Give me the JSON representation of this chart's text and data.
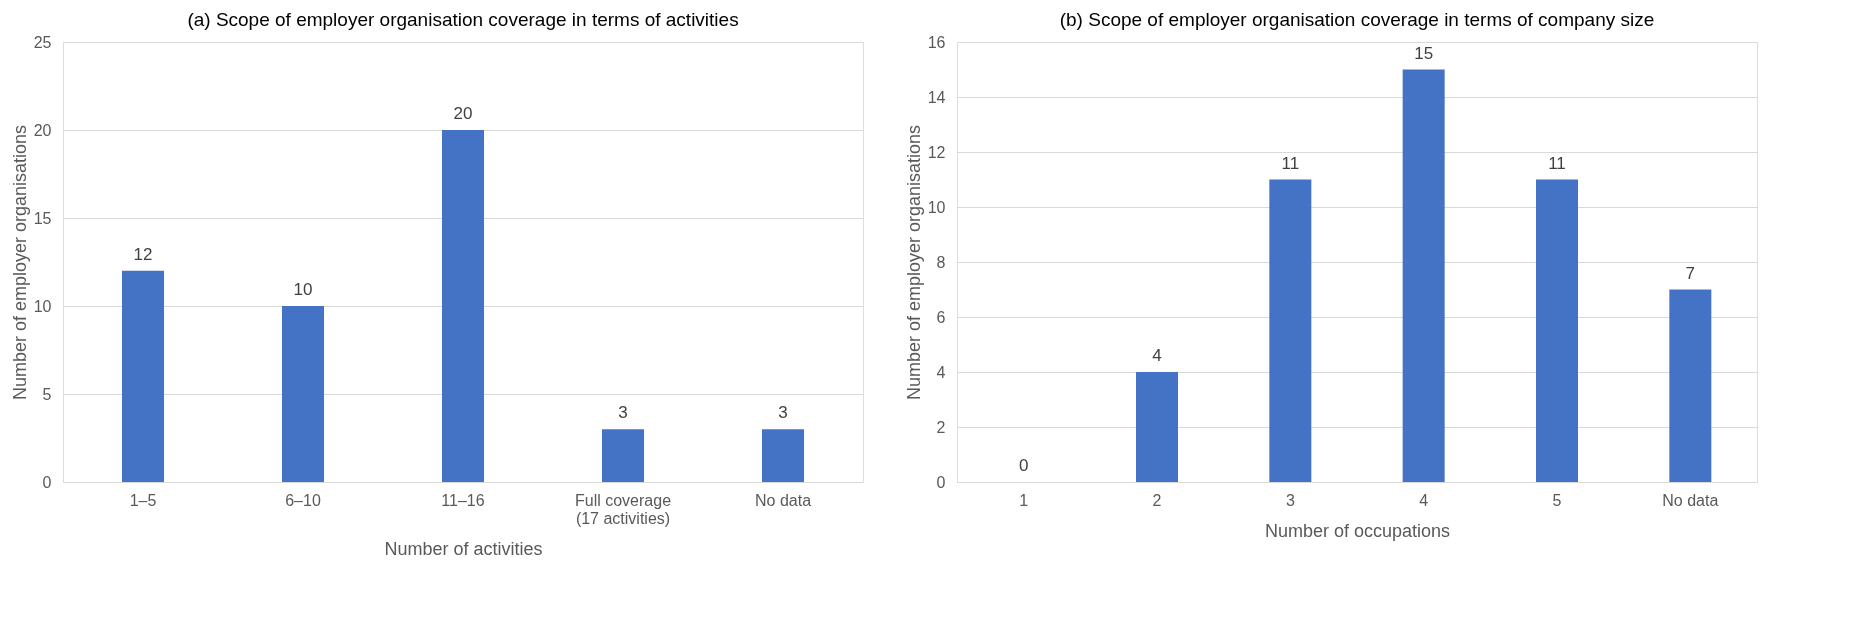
{
  "chart_data": [
    {
      "type": "bar",
      "title": "(a)  Scope of employer organisation coverage in terms of activities",
      "xlabel": "Number of activities",
      "ylabel": "Number of employer organisations",
      "categories": [
        "1–5",
        "6–10",
        "11–16",
        "Full coverage\n(17 activities)",
        "No data"
      ],
      "values": [
        12,
        10,
        20,
        3,
        3
      ],
      "color": "#4472c4",
      "ylim": [
        0,
        25
      ],
      "yticks": [
        0,
        5,
        10,
        15,
        20,
        25
      ],
      "grid": "y",
      "data_labels": true
    },
    {
      "type": "bar",
      "title": "(b)  Scope of employer organisation coverage in terms of company size",
      "xlabel": "Number of occupations",
      "ylabel": "Number of employer organisations",
      "categories": [
        "1",
        "2",
        "3",
        "4",
        "5",
        "No data"
      ],
      "values": [
        0,
        4,
        11,
        15,
        11,
        7
      ],
      "color": "#4472c4",
      "ylim": [
        0,
        16
      ],
      "yticks": [
        0,
        2,
        4,
        6,
        8,
        10,
        12,
        14,
        16
      ],
      "grid": "y",
      "data_labels": true
    }
  ]
}
